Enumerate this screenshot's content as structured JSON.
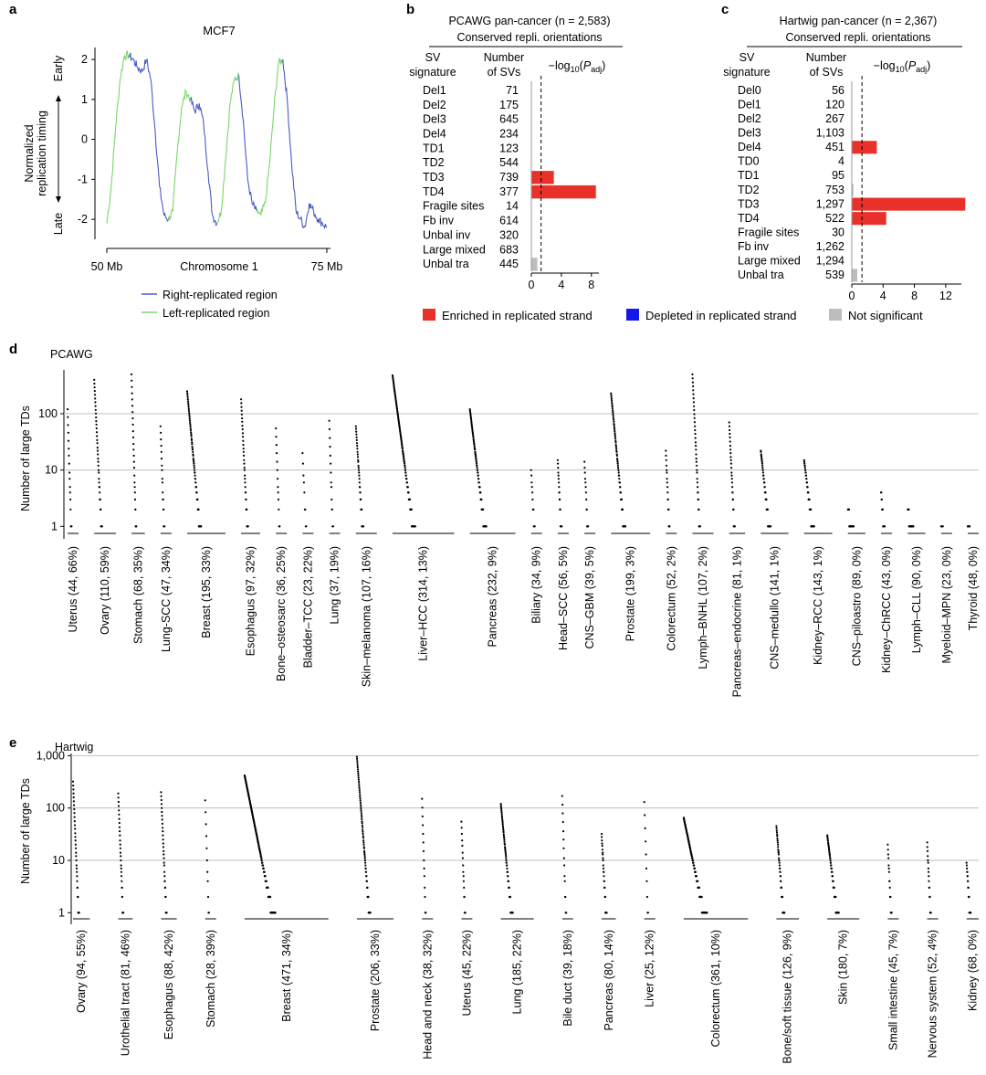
{
  "panels": {
    "a": "a",
    "b": "b",
    "c": "c",
    "d": "d",
    "e": "e"
  },
  "colors": {
    "enriched": "#e8312a",
    "depleted": "#1518e6",
    "not_significant": "#bdbdbd",
    "right_replicated": "#4a5bc4",
    "left_replicated": "#7bd66b",
    "dots": "#000000",
    "grid": "#bfbfbf"
  },
  "chart_data": [
    {
      "panel": "a",
      "type": "line",
      "title": "MCF7",
      "ylabel_top": "Normalized",
      "ylabel_bottom": "replication timing",
      "y_early": "Early",
      "y_late": "Late",
      "xlabel": "Chromosome 1",
      "x_start_label": "50 Mb",
      "x_end_label": "75 Mb",
      "ylim": [
        -2.5,
        2.3
      ],
      "yticks": [
        "2",
        "1",
        "0",
        "-1",
        "-2"
      ],
      "legend": [
        "Right-replicated region",
        "Left-replicated region"
      ],
      "segments_note": "alternating",
      "x": [
        50.0,
        50.5,
        51.0,
        51.5,
        52.0,
        52.5,
        53.0,
        53.5,
        54.0,
        54.5,
        55.0,
        55.5,
        56.0,
        56.5,
        57.0,
        57.5,
        58.0,
        58.5,
        59.0,
        59.5,
        60.0,
        60.5,
        61.0,
        61.5,
        62.0,
        62.5,
        63.0,
        63.5,
        64.0,
        64.5,
        65.0,
        65.5,
        66.0,
        66.5,
        67.0,
        67.5,
        68.0,
        68.5,
        69.0,
        69.5,
        70.0,
        70.5,
        71.0,
        71.5,
        72.0,
        72.5,
        73.0,
        73.5,
        74.0,
        74.5,
        75.0
      ],
      "y": [
        -2.1,
        -1.2,
        0.3,
        1.5,
        2.1,
        2.1,
        2.0,
        1.8,
        1.7,
        2.0,
        1.5,
        0.2,
        -1.2,
        -1.9,
        -2.0,
        -1.8,
        -0.3,
        0.8,
        1.2,
        1.0,
        0.7,
        0.9,
        0.4,
        -0.8,
        -1.9,
        -2.1,
        -1.8,
        -0.5,
        0.9,
        1.5,
        1.6,
        0.5,
        -1.0,
        -1.6,
        -1.8,
        -1.9,
        -1.6,
        -0.6,
        0.8,
        1.9,
        2.0,
        1.0,
        -0.6,
        -1.8,
        -2.0,
        -2.2,
        -1.6,
        -1.8,
        -2.0,
        -2.1,
        -2.2
      ],
      "direction": [
        "L",
        "L",
        "L",
        "L",
        "L",
        "R",
        "R",
        "R",
        "R",
        "R",
        "R",
        "R",
        "R",
        "R",
        "L",
        "L",
        "L",
        "L",
        "L",
        "R",
        "R",
        "R",
        "R",
        "R",
        "R",
        "L",
        "L",
        "L",
        "L",
        "L",
        "R",
        "R",
        "R",
        "R",
        "L",
        "L",
        "L",
        "L",
        "L",
        "L",
        "R",
        "R",
        "R",
        "R",
        "R",
        "R",
        "R",
        "R",
        "R",
        "R",
        "R"
      ]
    },
    {
      "panel": "b",
      "type": "bar",
      "title": "PCAWG pan-cancer (n = 2,583)",
      "subtitle": "Conserved repli. orientations",
      "col1_header": [
        "SV",
        "signature"
      ],
      "col2_header": [
        "Number",
        "of SVs"
      ],
      "xlabel": "−log10(Padj)",
      "xlim": [
        0,
        9
      ],
      "xticks": [
        0,
        4,
        8
      ],
      "threshold": 1.3,
      "categories": [
        "Del1",
        "Del2",
        "Del3",
        "Del4",
        "TD1",
        "TD2",
        "TD3",
        "TD4",
        "Fragile sites",
        "Fb inv",
        "Unbal inv",
        "Large mixed",
        "Unbal tra"
      ],
      "counts": [
        "71",
        "175",
        "645",
        "234",
        "123",
        "544",
        "739",
        "377",
        "14",
        "614",
        "320",
        "683",
        "445"
      ],
      "values": [
        0,
        0,
        0,
        0,
        0,
        0,
        3.0,
        8.6,
        0,
        0,
        0,
        0,
        0.8
      ],
      "status": [
        "ns",
        "ns",
        "ns",
        "ns",
        "ns",
        "ns",
        "enriched",
        "enriched",
        "ns",
        "ns",
        "ns",
        "ns",
        "ns"
      ]
    },
    {
      "panel": "c",
      "type": "bar",
      "title": "Hartwig pan-cancer (n = 2,367)",
      "subtitle": "Conserved repli. orientations",
      "col1_header": [
        "SV",
        "signature"
      ],
      "col2_header": [
        "Number",
        "of SVs"
      ],
      "xlabel": "−log10(Padj)",
      "xlim": [
        0,
        14
      ],
      "xticks": [
        0,
        4,
        8,
        12
      ],
      "threshold": 1.3,
      "categories": [
        "Del0",
        "Del1",
        "Del2",
        "Del3",
        "Del4",
        "TD0",
        "TD1",
        "TD2",
        "TD3",
        "TD4",
        "Fragile sites",
        "Fb inv",
        "Large mixed",
        "Unbal tra"
      ],
      "counts": [
        "56",
        "120",
        "267",
        "1,103",
        "451",
        "4",
        "95",
        "753",
        "1,297",
        "522",
        "30",
        "1,262",
        "1,294",
        "539"
      ],
      "values": [
        0,
        0,
        0,
        0,
        3.2,
        0,
        0,
        0.2,
        14.5,
        4.4,
        0,
        0,
        0,
        0.7
      ],
      "status": [
        "ns",
        "ns",
        "ns",
        "ns",
        "enriched",
        "ns",
        "ns",
        "ns",
        "enriched",
        "enriched",
        "ns",
        "ns",
        "ns",
        "ns"
      ]
    },
    {
      "panel": "d",
      "type": "scatter",
      "cohort": "PCAWG",
      "ylabel": "Number of large TDs",
      "yscale": "log",
      "yticks": [
        "1",
        "10",
        "100"
      ],
      "ylim": [
        0.6,
        600
      ],
      "groups": [
        {
          "label": "Uterus (44, 66%)",
          "n": 44,
          "max": 120
        },
        {
          "label": "Ovary (110, 59%)",
          "n": 110,
          "max": 400
        },
        {
          "label": "Stomach (68, 35%)",
          "n": 68,
          "max": 500
        },
        {
          "label": "Lung-SCC (47, 34%)",
          "n": 47,
          "max": 60
        },
        {
          "label": "Breast (195, 33%)",
          "n": 195,
          "max": 250
        },
        {
          "label": "Esophagus (97, 32%)",
          "n": 97,
          "max": 180
        },
        {
          "label": "Bone–osteosarc (36, 25%)",
          "n": 36,
          "max": 55
        },
        {
          "label": "Bladder–TCC (23, 22%)",
          "n": 23,
          "max": 20
        },
        {
          "label": "Lung (37, 19%)",
          "n": 37,
          "max": 75
        },
        {
          "label": "Skin–melanoma (107, 16%)",
          "n": 107,
          "max": 60
        },
        {
          "label": "Liver–HCC (314, 13%)",
          "n": 314,
          "max": 480
        },
        {
          "label": "Pancreas (232, 9%)",
          "n": 232,
          "max": 120
        },
        {
          "label": "Biliary (34, 9%)",
          "n": 34,
          "max": 10
        },
        {
          "label": "Head–SCC (56, 5%)",
          "n": 56,
          "max": 15
        },
        {
          "label": "CNS–GBM (39, 5%)",
          "n": 39,
          "max": 14
        },
        {
          "label": "Prostate (199, 3%)",
          "n": 199,
          "max": 230
        },
        {
          "label": "Colorectum (52, 2%)",
          "n": 52,
          "max": 22
        },
        {
          "label": "Lymph–BNHL (107, 2%)",
          "n": 107,
          "max": 500
        },
        {
          "label": "Pancreas–endocrine (81, 1%)",
          "n": 81,
          "max": 70
        },
        {
          "label": "CNS–medullo (141, 1%)",
          "n": 141,
          "max": 22
        },
        {
          "label": "Kidney–RCC (143, 1%)",
          "n": 143,
          "max": 15
        },
        {
          "label": "CNS–piloastro (89, 0%)",
          "n": 89,
          "max": 2
        },
        {
          "label": "Kidney–ChRCC (43, 0%)",
          "n": 43,
          "max": 4
        },
        {
          "label": "Lymph–CLL (90, 0%)",
          "n": 90,
          "max": 2
        },
        {
          "label": "Myeloid–MPN (23, 0%)",
          "n": 23,
          "max": 1
        },
        {
          "label": "Thyroid (48, 0%)",
          "n": 48,
          "max": 1
        }
      ]
    },
    {
      "panel": "e",
      "type": "scatter",
      "cohort": "Hartwig",
      "ylabel": "Number of large TDs",
      "yscale": "log",
      "yticks": [
        "1",
        "10",
        "100",
        "1,000"
      ],
      "ylim": [
        0.6,
        1100
      ],
      "groups": [
        {
          "label": "Ovary (94, 55%)",
          "n": 94,
          "max": 320
        },
        {
          "label": "Urothelial tract (81, 46%)",
          "n": 81,
          "max": 190
        },
        {
          "label": "Esophagus (88, 42%)",
          "n": 88,
          "max": 200
        },
        {
          "label": "Stomach (28, 39%)",
          "n": 28,
          "max": 140
        },
        {
          "label": "Breast (471, 34%)",
          "n": 471,
          "max": 420
        },
        {
          "label": "Prostate (206, 33%)",
          "n": 206,
          "max": 950
        },
        {
          "label": "Head and neck (38, 32%)",
          "n": 38,
          "max": 150
        },
        {
          "label": "Uterus (45, 22%)",
          "n": 45,
          "max": 55
        },
        {
          "label": "Lung (185, 22%)",
          "n": 185,
          "max": 120
        },
        {
          "label": "Bile duct (39, 18%)",
          "n": 39,
          "max": 170
        },
        {
          "label": "Pancreas (80, 14%)",
          "n": 80,
          "max": 32
        },
        {
          "label": "Liver (25, 12%)",
          "n": 25,
          "max": 130
        },
        {
          "label": "Colorectum (361, 10%)",
          "n": 361,
          "max": 65
        },
        {
          "label": "Bone/soft tissue (126, 9%)",
          "n": 126,
          "max": 45
        },
        {
          "label": "Skin (180, 7%)",
          "n": 180,
          "max": 30
        },
        {
          "label": "Small intestine (45, 7%)",
          "n": 45,
          "max": 20
        },
        {
          "label": "Nervous system (52, 4%)",
          "n": 52,
          "max": 22
        },
        {
          "label": "Kidney (68, 0%)",
          "n": 68,
          "max": 9
        }
      ]
    }
  ],
  "legend_bottom": {
    "enriched": "Enriched in replicated strand",
    "depleted": "Depleted in replicated strand",
    "not_significant": "Not significant"
  }
}
